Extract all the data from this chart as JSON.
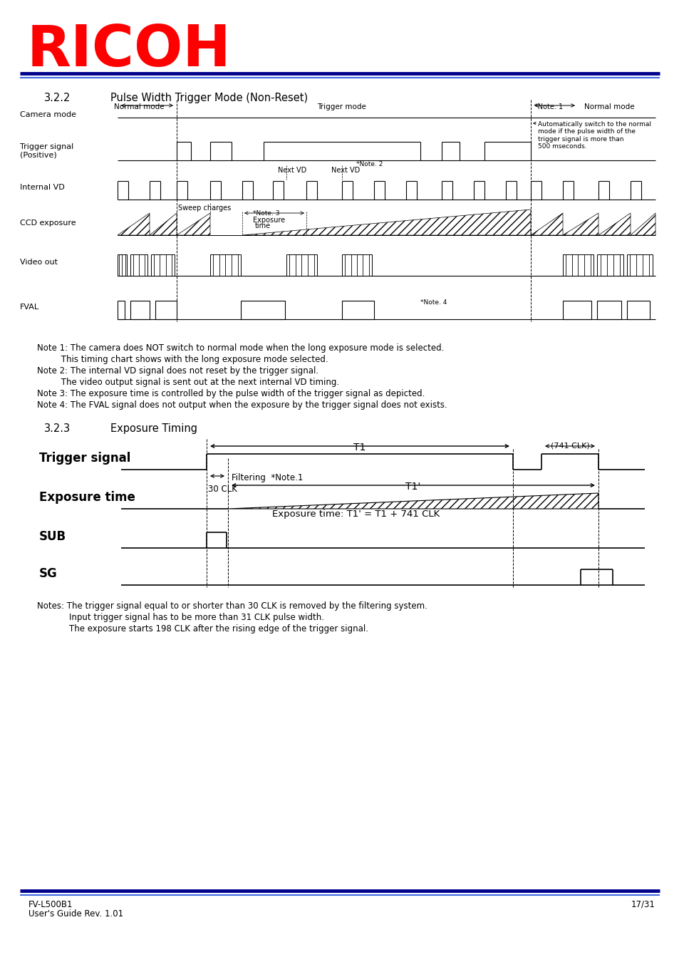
{
  "ricoh_color": "#FF0000",
  "bar_dark": "#00008B",
  "bar_light": "#4169E1",
  "bg_color": "#FFFFFF",
  "notes_section1": [
    "Note 1: The camera does NOT switch to normal mode when the long exposure mode is selected.",
    "         This timing chart shows with the long exposure mode selected.",
    "Note 2: The internal VD signal does not reset by the trigger signal.",
    "         The video output signal is sent out at the next internal VD timing.",
    "Note 3: The exposure time is controlled by the pulse width of the trigger signal as depicted.",
    "Note 4: The FVAL signal does not output when the exposure by the trigger signal does not exists."
  ],
  "notes_section2": [
    "Notes: The trigger signal equal to or shorter than 30 CLK is removed by the filtering system.",
    "            Input trigger signal has to be more than 31 CLK pulse width.",
    "            The exposure starts 198 CLK after the rising edge of the trigger signal."
  ],
  "footer_left1": "FV-L500B1",
  "footer_left2": "User's Guide Rev. 1.01",
  "footer_right": "17/31"
}
